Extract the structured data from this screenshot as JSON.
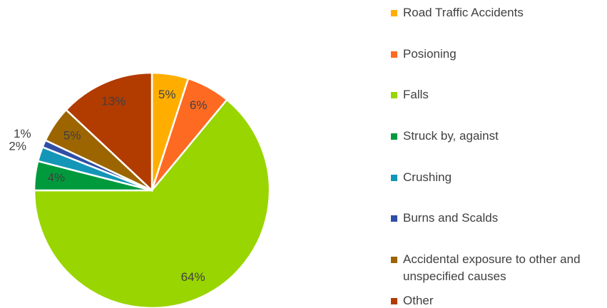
{
  "chart_data": {
    "type": "pie",
    "categories": [
      "Road Traffic Accidents",
      "Posioning",
      "Falls",
      "Struck by, against",
      "Crushing",
      "Burns and Scalds",
      "Accidental exposure to other and unspecified causes",
      "Other"
    ],
    "values": [
      5,
      6,
      64,
      4,
      2,
      1,
      5,
      13
    ],
    "value_labels": [
      "5%",
      "6%",
      "64%",
      "4%",
      "2%",
      "1%",
      "5%",
      "13%"
    ],
    "colors": [
      "#FFAE00",
      "#FF6A22",
      "#99D500",
      "#009A3D",
      "#1496B8",
      "#2F4FA6",
      "#9C6500",
      "#B23B00"
    ],
    "legend": "right"
  }
}
